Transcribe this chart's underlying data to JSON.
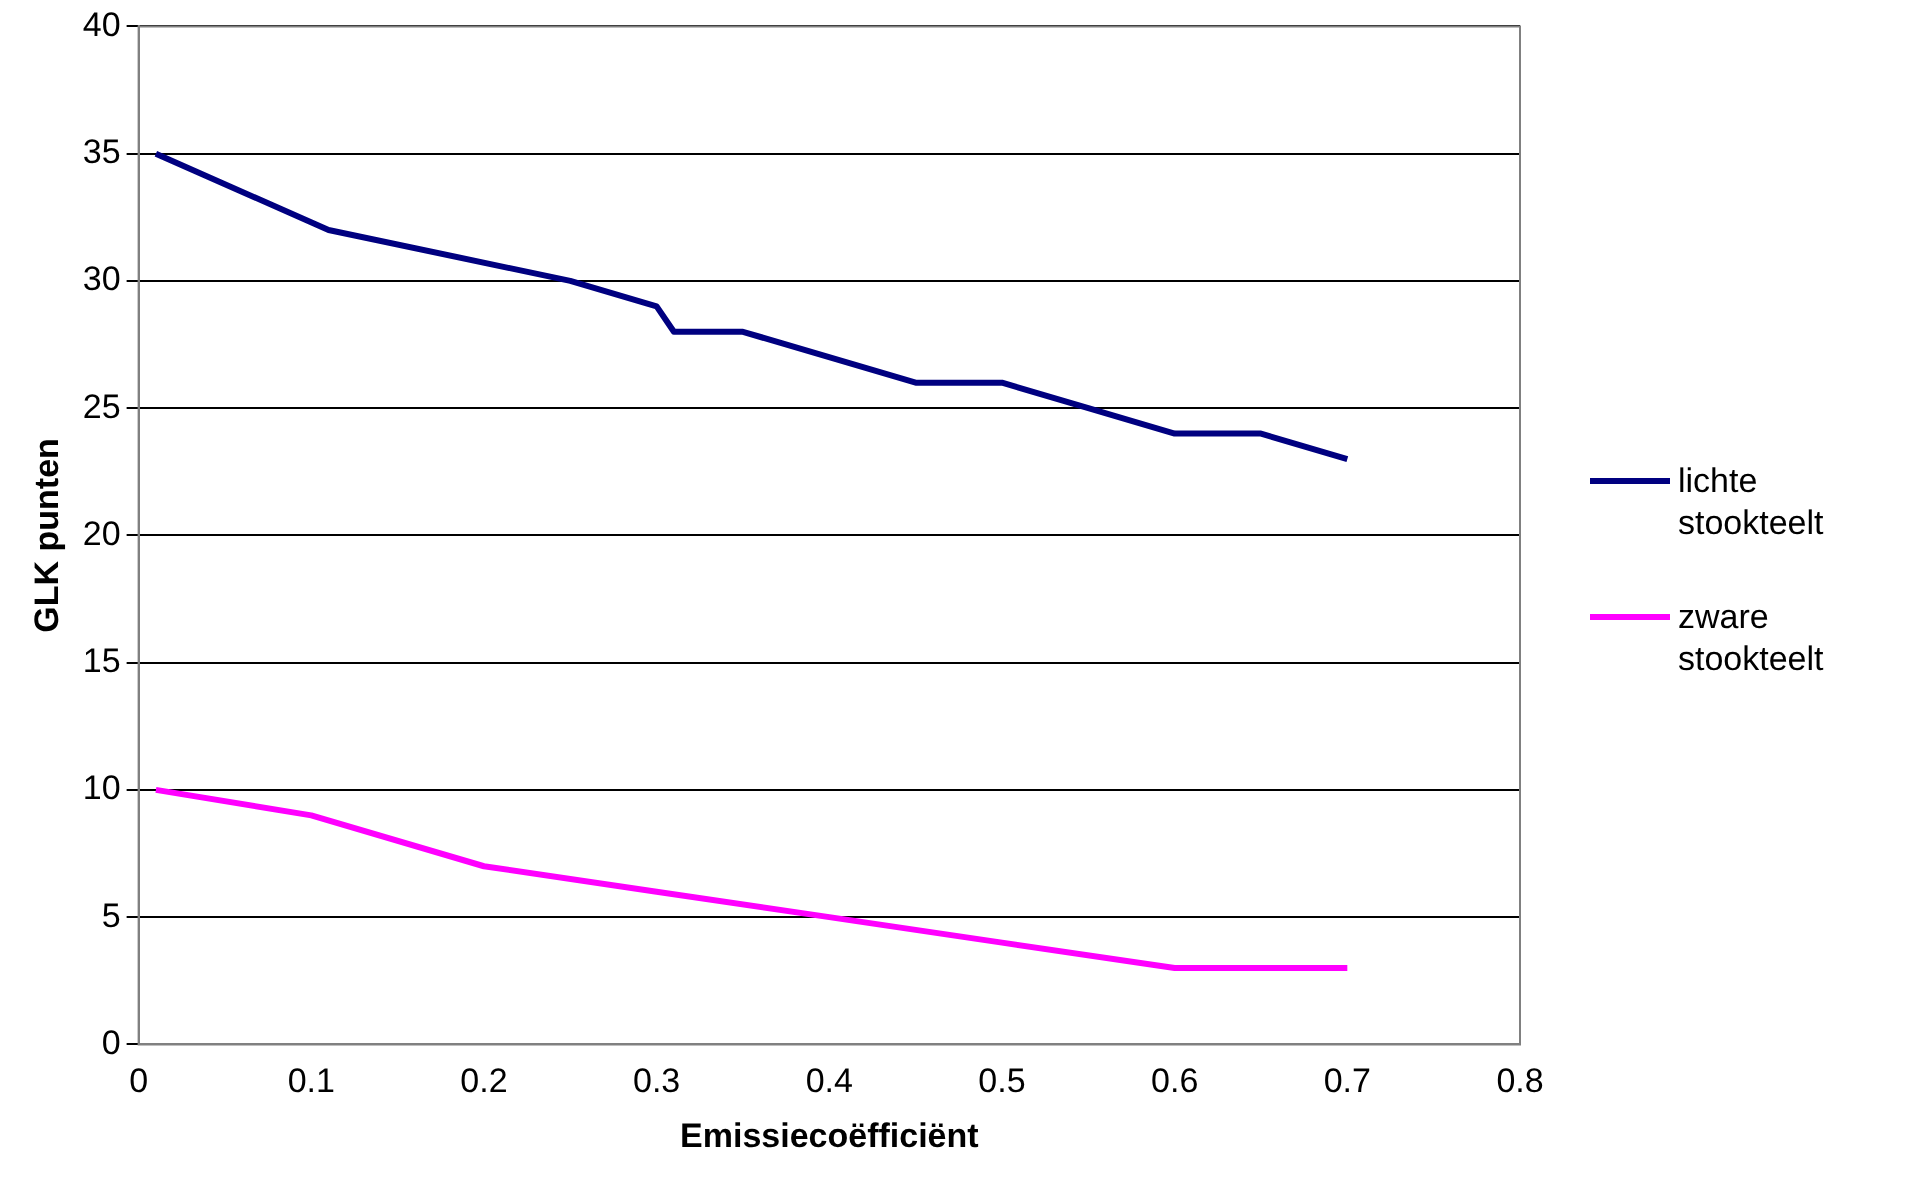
{
  "chart_data": {
    "type": "line",
    "xlabel": "Emissiecoëfficiënt",
    "ylabel": "GLK punten",
    "xlim": [
      0,
      0.8
    ],
    "xticks": [
      0,
      0.1,
      0.2,
      0.3,
      0.4,
      0.5,
      0.6,
      0.7,
      0.8
    ],
    "ylim": [
      0,
      40
    ],
    "yticks": [
      0,
      5,
      10,
      15,
      20,
      25,
      30,
      35,
      40
    ],
    "grid": "y",
    "legend": "right",
    "marker": "none",
    "line_style": "solid",
    "series": [
      {
        "name": "lichte stookteelt",
        "color": "#000080",
        "x": [
          0.01,
          0.11,
          0.25,
          0.3,
          0.31,
          0.35,
          0.45,
          0.5,
          0.55,
          0.6,
          0.65,
          0.7
        ],
        "values": [
          35,
          32,
          30,
          29,
          28,
          28,
          26,
          26,
          25,
          24,
          24,
          23
        ]
      },
      {
        "name": "zware stookteelt",
        "color": "#ff00ff",
        "x": [
          0.01,
          0.1,
          0.2,
          0.3,
          0.4,
          0.5,
          0.6,
          0.7
        ],
        "values": [
          10,
          9,
          7,
          6,
          5,
          4,
          3,
          3
        ]
      }
    ]
  }
}
